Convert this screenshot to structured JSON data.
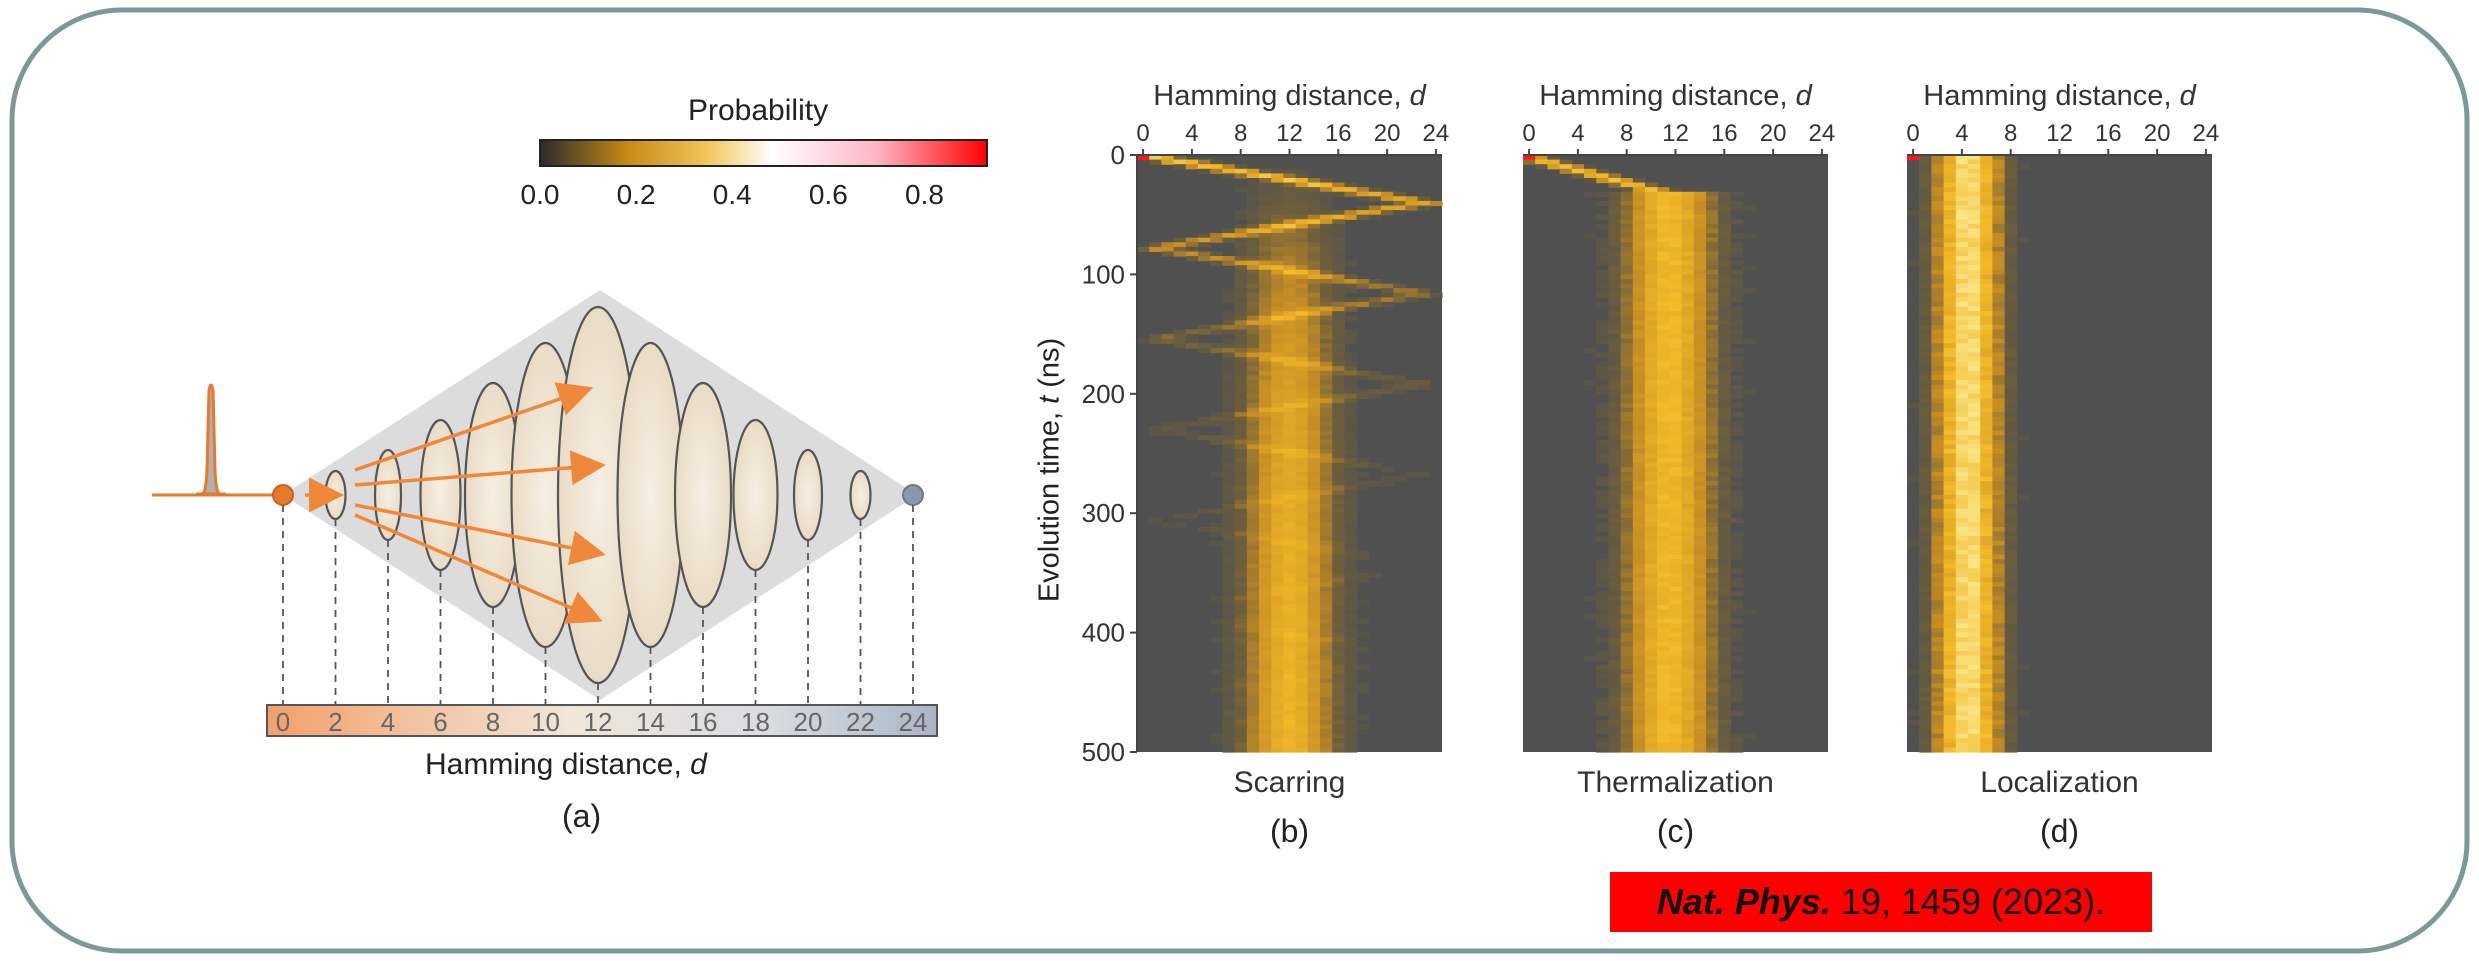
{
  "colorbar": {
    "title": "Probability",
    "ticks": [
      "0.0",
      "0.2",
      "0.4",
      "0.6",
      "0.8"
    ],
    "tick_values": [
      0.0,
      0.2,
      0.4,
      0.6,
      0.8
    ],
    "range": [
      0.0,
      0.93
    ],
    "colors": [
      "#2b2b2b",
      "#c98b14",
      "#f2b81e",
      "#ffffff",
      "#ffb6c6",
      "#ff0000"
    ]
  },
  "diagram": {
    "panel_label": "(a)",
    "axis_label": "Hamming distance,",
    "axis_var": "d",
    "distance_ticks": [
      "0",
      "2",
      "4",
      "6",
      "8",
      "10",
      "12",
      "14",
      "16",
      "18",
      "20",
      "22",
      "24"
    ],
    "start_node_color": "#e8782a",
    "end_node_color": "#8a97a8",
    "arrow_color": "#f0883a"
  },
  "heatmaps": {
    "top_axis_label": "Hamming distance,",
    "top_axis_var": "d",
    "x_ticks": [
      "0",
      "4",
      "8",
      "12",
      "16",
      "20",
      "24"
    ],
    "y_label": "Evolution time,",
    "y_var": "t",
    "y_unit": "(ns)",
    "y_ticks": [
      "0",
      "100",
      "200",
      "300",
      "400",
      "500"
    ],
    "panels": [
      {
        "id": "b",
        "label": "(b)",
        "title": "Scarring"
      },
      {
        "id": "c",
        "label": "(c)",
        "title": "Thermalization"
      },
      {
        "id": "d",
        "label": "(d)",
        "title": "Localization"
      }
    ]
  },
  "reference": {
    "journal": "Nat. Phys.",
    "rest": " 19, 1459 (2023)."
  },
  "colors": {
    "frame": "#7a9a9a",
    "heatmap_bg": "#505050",
    "diamond": "#dcdcdc"
  }
}
